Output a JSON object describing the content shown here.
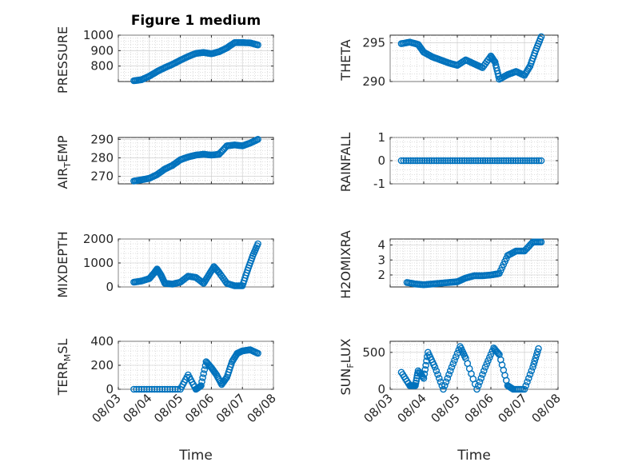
{
  "chart_data": [
    {
      "type": "scatter",
      "title": "Figure 1 medium",
      "ylabel": "PRESSURE",
      "xlabel": "",
      "xlim": [
        "08/03",
        "08/08"
      ],
      "ylim": [
        700,
        1000
      ],
      "yticks": [
        "800",
        "900",
        "1000"
      ],
      "xticks": [],
      "grid": true,
      "color": "#0072bd",
      "x": [
        "08/03 12:00",
        "08/03 18:00",
        "08/04 00:00",
        "08/04 06:00",
        "08/04 12:00",
        "08/04 18:00",
        "08/05 00:00",
        "08/05 06:00",
        "08/05 12:00",
        "08/05 18:00",
        "08/06 00:00",
        "08/06 06:00",
        "08/06 12:00",
        "08/06 18:00",
        "08/07 00:00",
        "08/07 06:00",
        "08/07 12:00"
      ],
      "y": [
        705,
        712,
        735,
        765,
        790,
        812,
        838,
        862,
        882,
        888,
        880,
        893,
        918,
        952,
        952,
        950,
        937
      ]
    },
    {
      "type": "scatter",
      "title": "",
      "ylabel": "THETA",
      "xlabel": "",
      "xlim": [
        "08/03",
        "08/08"
      ],
      "ylim": [
        290,
        296
      ],
      "yticks": [
        "290",
        "295"
      ],
      "xticks": [],
      "grid": true,
      "color": "#0072bd",
      "x": [
        "08/03 08:00",
        "08/03 14:00",
        "08/03 20:00",
        "08/04 00:00",
        "08/04 06:00",
        "08/04 12:00",
        "08/04 18:00",
        "08/05 00:00",
        "08/05 06:00",
        "08/05 12:00",
        "08/05 18:00",
        "08/06 00:00",
        "08/06 03:00",
        "08/06 06:00",
        "08/06 12:00",
        "08/06 18:00",
        "08/07 00:00",
        "08/07 04:00",
        "08/07 08:00",
        "08/07 12:00"
      ],
      "y": [
        294.9,
        295.1,
        294.8,
        293.8,
        293.2,
        292.8,
        292.4,
        292.1,
        292.8,
        292.3,
        291.8,
        293.3,
        292.5,
        290.3,
        290.9,
        291.3,
        290.8,
        292.0,
        294.0,
        295.8
      ]
    },
    {
      "type": "scatter",
      "title": "",
      "ylabel": "AIR_TEMP",
      "xlabel": "",
      "xlim": [
        "08/03",
        "08/08"
      ],
      "ylim": [
        266,
        291
      ],
      "yticks": [
        "270",
        "280",
        "290"
      ],
      "xticks": [],
      "grid": true,
      "color": "#0072bd",
      "x": [
        "08/03 12:00",
        "08/03 18:00",
        "08/04 00:00",
        "08/04 06:00",
        "08/04 12:00",
        "08/04 18:00",
        "08/05 00:00",
        "08/05 06:00",
        "08/05 12:00",
        "08/05 18:00",
        "08/06 00:00",
        "08/06 06:00",
        "08/06 12:00",
        "08/06 18:00",
        "08/07 00:00",
        "08/07 06:00",
        "08/07 12:00"
      ],
      "y": [
        267.5,
        268.2,
        269,
        271,
        274,
        276,
        279,
        280.5,
        281.5,
        282,
        281.5,
        282,
        286.5,
        287,
        286.5,
        288,
        290
      ]
    },
    {
      "type": "scatter",
      "title": "",
      "ylabel": "RAINFALL",
      "xlabel": "",
      "xlim": [
        "08/03",
        "08/08"
      ],
      "ylim": [
        -1,
        1
      ],
      "yticks": [
        "-1",
        "0",
        "1"
      ],
      "xticks": [],
      "grid": true,
      "color": "#0072bd",
      "x": [
        "08/03 08:00",
        "08/03 18:00",
        "08/04 04:00",
        "08/04 14:00",
        "08/05 00:00",
        "08/05 10:00",
        "08/05 20:00",
        "08/06 06:00",
        "08/06 16:00",
        "08/07 02:00",
        "08/07 12:00"
      ],
      "y": [
        0,
        0,
        0,
        0,
        0,
        0,
        0,
        0,
        0,
        0,
        0
      ]
    },
    {
      "type": "scatter",
      "title": "",
      "ylabel": "MIXDEPTH",
      "xlabel": "",
      "xlim": [
        "08/03",
        "08/08"
      ],
      "ylim": [
        0,
        2000
      ],
      "yticks": [
        "0",
        "1000",
        "2000"
      ],
      "xticks": [],
      "grid": true,
      "color": "#0072bd",
      "x": [
        "08/03 12:00",
        "08/03 18:00",
        "08/04 00:00",
        "08/04 04:00",
        "08/04 06:00",
        "08/04 09:00",
        "08/04 12:00",
        "08/04 18:00",
        "08/05 00:00",
        "08/05 06:00",
        "08/05 12:00",
        "08/05 18:00",
        "08/05 22:00",
        "08/06 02:00",
        "08/06 06:00",
        "08/06 12:00",
        "08/06 18:00",
        "08/07 00:00",
        "08/07 04:00",
        "08/07 08:00",
        "08/07 12:00"
      ],
      "y": [
        200,
        250,
        350,
        600,
        750,
        500,
        150,
        120,
        200,
        450,
        400,
        150,
        500,
        850,
        600,
        150,
        50,
        50,
        700,
        1300,
        1800
      ]
    },
    {
      "type": "scatter",
      "title": "",
      "ylabel": "H2OMIXRA",
      "xlabel": "",
      "xlim": [
        "08/03",
        "08/08"
      ],
      "ylim": [
        1.2,
        4.4
      ],
      "yticks": [
        "2",
        "3",
        "4"
      ],
      "xticks": [],
      "grid": true,
      "color": "#0072bd",
      "x": [
        "08/03 12:00",
        "08/03 18:00",
        "08/04 00:00",
        "08/04 06:00",
        "08/04 12:00",
        "08/04 18:00",
        "08/05 00:00",
        "08/05 06:00",
        "08/05 12:00",
        "08/05 18:00",
        "08/06 00:00",
        "08/06 06:00",
        "08/06 12:00",
        "08/06 18:00",
        "08/07 00:00",
        "08/07 06:00",
        "08/07 12:00"
      ],
      "y": [
        1.5,
        1.4,
        1.35,
        1.4,
        1.45,
        1.5,
        1.55,
        1.8,
        1.95,
        1.95,
        2.0,
        2.1,
        3.3,
        3.6,
        3.6,
        4.2,
        4.2
      ]
    },
    {
      "type": "scatter",
      "title": "",
      "ylabel": "TERR_MSL",
      "xlabel": "Time",
      "xlim": [
        "08/03",
        "08/08"
      ],
      "ylim": [
        0,
        400
      ],
      "yticks": [
        "0",
        "200",
        "400"
      ],
      "xticks": [
        "08/03",
        "08/04",
        "08/05",
        "08/06",
        "08/07",
        "08/08"
      ],
      "grid": true,
      "color": "#0072bd",
      "x": [
        "08/03 12:00",
        "08/04 00:00",
        "08/04 12:00",
        "08/05 00:00",
        "08/05 06:00",
        "08/05 12:00",
        "08/05 16:00",
        "08/05 20:00",
        "08/06 00:00",
        "08/06 04:00",
        "08/06 08:00",
        "08/06 12:00",
        "08/06 16:00",
        "08/06 20:00",
        "08/07 00:00",
        "08/07 06:00",
        "08/07 12:00"
      ],
      "y": [
        0,
        0,
        0,
        0,
        120,
        0,
        30,
        230,
        180,
        120,
        40,
        100,
        230,
        300,
        320,
        330,
        300
      ]
    },
    {
      "type": "scatter",
      "title": "",
      "ylabel": "SUN_FLUX",
      "xlabel": "Time",
      "xlim": [
        "08/03",
        "08/08"
      ],
      "ylim": [
        0,
        650
      ],
      "yticks": [
        "0",
        "500"
      ],
      "xticks": [
        "08/03",
        "08/04",
        "08/05",
        "08/06",
        "08/07",
        "08/08"
      ],
      "grid": true,
      "color": "#0072bd",
      "x": [
        "08/03 08:00",
        "08/03 14:00",
        "08/03 18:00",
        "08/03 20:00",
        "08/04 00:00",
        "08/04 03:00",
        "08/04 08:00",
        "08/04 14:00",
        "08/04 20:00",
        "08/05 02:00",
        "08/05 06:00",
        "08/05 14:00",
        "08/05 20:00",
        "08/06 02:00",
        "08/06 06:00",
        "08/06 12:00",
        "08/06 16:00",
        "08/07 00:00",
        "08/07 06:00",
        "08/07 10:00"
      ],
      "y": [
        230,
        50,
        50,
        250,
        150,
        500,
        300,
        0,
        300,
        580,
        420,
        0,
        300,
        560,
        470,
        50,
        0,
        0,
        300,
        550
      ]
    }
  ]
}
